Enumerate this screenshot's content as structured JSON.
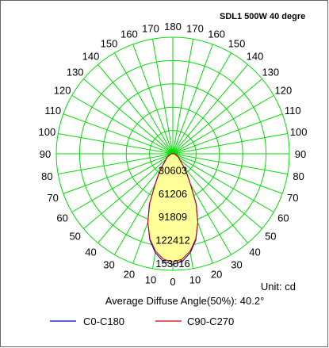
{
  "chart_data": {
    "type": "polar",
    "title": "SDL1 500W 40 degre",
    "unit_label": "Unit: cd",
    "average_label": "Average Diffuse Angle(50%): 40.2°",
    "radial_labels": [
      "30603",
      "61206",
      "91809",
      "122412",
      "153016"
    ],
    "radial_max": 153016,
    "angle_labels_left": [
      "0",
      "10",
      "20",
      "30",
      "40",
      "50",
      "60",
      "70",
      "80",
      "90",
      "100",
      "110",
      "120",
      "130",
      "140",
      "150",
      "160",
      "170"
    ],
    "angle_labels_right": [
      "10",
      "20",
      "30",
      "40",
      "50",
      "60",
      "70",
      "80",
      "90",
      "100",
      "110",
      "120",
      "130",
      "140",
      "150",
      "160",
      "170",
      "180"
    ],
    "grid": true,
    "legend_position": "bottom-left",
    "colors": {
      "grid": "#00dd00",
      "fill": "#ffff99",
      "c0": "#0000cc",
      "c90": "#cc0000"
    },
    "series": [
      {
        "name": "C0-C180",
        "angles": [
          0,
          5,
          10,
          15,
          20,
          25,
          30,
          35,
          40,
          45,
          60,
          90,
          120,
          150,
          180
        ],
        "values": [
          145000,
          142000,
          132000,
          117000,
          96000,
          72000,
          46000,
          32000,
          22000,
          15000,
          8000,
          2000,
          500,
          200,
          0
        ]
      },
      {
        "name": "C90-C270",
        "angles": [
          0,
          5,
          10,
          15,
          20,
          25,
          30,
          35,
          40,
          45,
          60,
          90,
          120,
          150,
          180
        ],
        "values": [
          142000,
          139000,
          130000,
          116000,
          96000,
          73000,
          47000,
          33000,
          23000,
          16000,
          8500,
          2000,
          500,
          200,
          0
        ]
      }
    ]
  }
}
